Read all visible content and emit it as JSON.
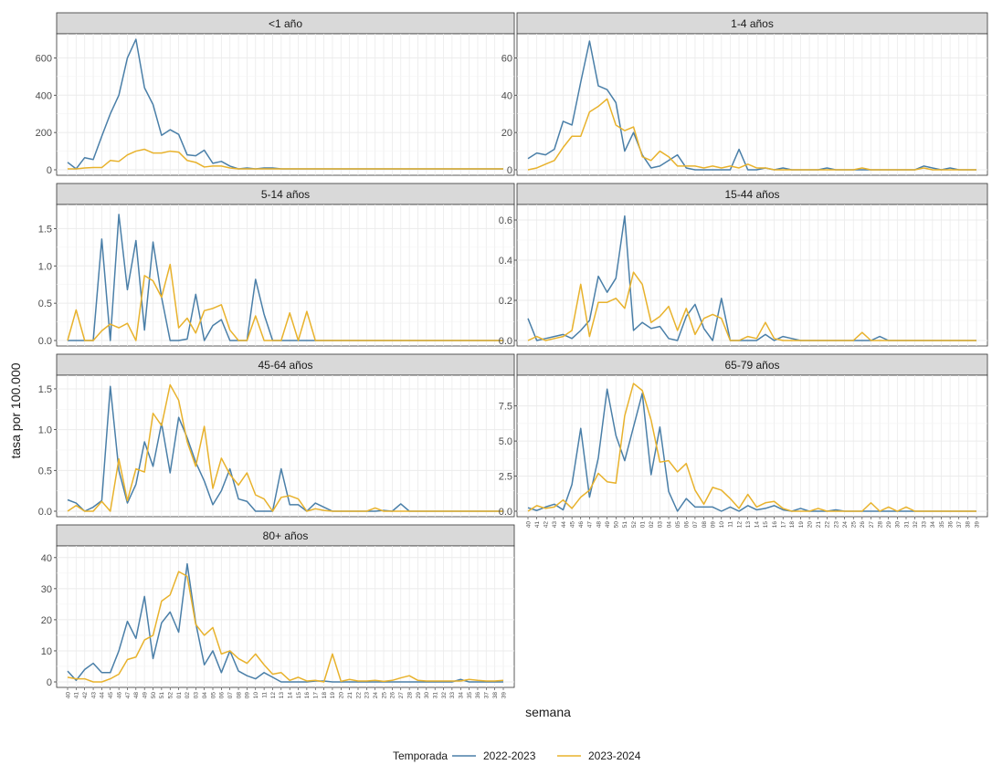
{
  "chart_data": {
    "type": "line",
    "xlabel": "semana",
    "ylabel": "tasa por 100.000",
    "x_weeks": [
      "40",
      "41",
      "42",
      "43",
      "44",
      "45",
      "46",
      "47",
      "48",
      "49",
      "50",
      "51",
      "52",
      "01",
      "02",
      "03",
      "04",
      "05",
      "06",
      "07",
      "08",
      "09",
      "10",
      "11",
      "12",
      "13",
      "14",
      "15",
      "16",
      "17",
      "18",
      "19",
      "20",
      "21",
      "22",
      "23",
      "24",
      "25",
      "26",
      "27",
      "28",
      "29",
      "30",
      "31",
      "32",
      "33",
      "34",
      "35",
      "36",
      "37",
      "38",
      "39"
    ],
    "legend": {
      "title": "Temporada",
      "position": "bottom",
      "series": [
        {
          "name": "2022-2023",
          "color": "#4a7fa8"
        },
        {
          "name": "2023-2024",
          "color": "#e8b22c"
        }
      ]
    },
    "panels": [
      {
        "title": "<1 año",
        "ylim": [
          0,
          700
        ],
        "yticks": [
          {
            "v": 0,
            "label": "0"
          },
          {
            "v": 200,
            "label": "200"
          },
          {
            "v": 400,
            "label": "400"
          },
          {
            "v": 600,
            "label": "600"
          }
        ],
        "s1": [
          40,
          5,
          65,
          55,
          180,
          300,
          400,
          600,
          700,
          440,
          350,
          185,
          215,
          190,
          80,
          75,
          105,
          35,
          45,
          20,
          5,
          10,
          5,
          10,
          10,
          5,
          5,
          5,
          5,
          5,
          5,
          5,
          5,
          5,
          5,
          5,
          5,
          5,
          5,
          5,
          5,
          5,
          5,
          5,
          5,
          5,
          5,
          5,
          5,
          5,
          5,
          5
        ],
        "s2": [
          5,
          5,
          10,
          12,
          12,
          50,
          45,
          80,
          100,
          110,
          90,
          90,
          100,
          95,
          50,
          40,
          15,
          20,
          20,
          10,
          5,
          5,
          5,
          5,
          5,
          5,
          5,
          5,
          5,
          5,
          5,
          5,
          5,
          5,
          5,
          5,
          5,
          5,
          5,
          5,
          5,
          5,
          5,
          5,
          5,
          5,
          5,
          5,
          5,
          5,
          5,
          5
        ]
      },
      {
        "title": "1-4 años",
        "ylim": [
          0,
          70
        ],
        "yticks": [
          {
            "v": 0,
            "label": "0"
          },
          {
            "v": 20,
            "label": "20"
          },
          {
            "v": 40,
            "label": "40"
          },
          {
            "v": 60,
            "label": "60"
          }
        ],
        "s1": [
          6,
          9,
          8,
          11,
          26,
          24,
          47,
          69,
          45,
          43,
          36,
          10,
          20,
          8,
          1,
          2,
          5,
          8,
          1,
          0,
          0,
          0,
          0,
          0,
          11,
          0,
          0,
          1,
          0,
          1,
          0,
          0,
          0,
          0,
          1,
          0,
          0,
          0,
          0,
          0,
          0,
          0,
          0,
          0,
          0,
          2,
          1,
          0,
          1,
          0,
          0,
          0
        ],
        "s2": [
          0,
          1,
          3,
          5,
          12,
          18,
          18,
          31,
          34,
          38,
          24,
          21,
          23,
          7,
          5,
          10,
          7,
          2,
          2,
          2,
          1,
          2,
          1,
          2,
          1,
          3,
          1,
          1,
          0,
          0,
          0,
          0,
          0,
          0,
          0,
          0,
          0,
          0,
          1,
          0,
          0,
          0,
          0,
          0,
          0,
          1,
          0,
          0,
          0,
          0,
          0,
          0
        ]
      },
      {
        "title": "5-14 años",
        "ylim": [
          0,
          1.75
        ],
        "yticks": [
          {
            "v": 0,
            "label": "0.0"
          },
          {
            "v": 0.5,
            "label": "0.5"
          },
          {
            "v": 1.0,
            "label": "1.0"
          },
          {
            "v": 1.5,
            "label": "1.5"
          }
        ],
        "s1": [
          0,
          0,
          0,
          0,
          1.36,
          0,
          1.69,
          0.68,
          1.34,
          0.14,
          1.32,
          0.58,
          0,
          0,
          0.02,
          0.62,
          0,
          0.2,
          0.28,
          0,
          0,
          0,
          0.82,
          0.35,
          0,
          0,
          0,
          0,
          0,
          0,
          0,
          0,
          0,
          0,
          0,
          0,
          0,
          0,
          0,
          0,
          0,
          0,
          0,
          0,
          0,
          0,
          0,
          0,
          0,
          0,
          0,
          0
        ],
        "s2": [
          0,
          0.41,
          0,
          0,
          0.13,
          0.22,
          0.17,
          0.23,
          0,
          0.87,
          0.8,
          0.58,
          1.02,
          0.17,
          0.3,
          0.1,
          0.4,
          0.43,
          0.48,
          0.14,
          0,
          0,
          0.33,
          0,
          0,
          0,
          0.37,
          0,
          0.39,
          0,
          0,
          0,
          0,
          0,
          0,
          0,
          0,
          0,
          0,
          0,
          0,
          0,
          0,
          0,
          0,
          0,
          0,
          0,
          0,
          0,
          0,
          0
        ]
      },
      {
        "title": "15-44 años",
        "ylim": [
          0,
          0.65
        ],
        "yticks": [
          {
            "v": 0,
            "label": "0.0"
          },
          {
            "v": 0.2,
            "label": "0.2"
          },
          {
            "v": 0.4,
            "label": "0.4"
          },
          {
            "v": 0.6,
            "label": "0.6"
          }
        ],
        "s1": [
          0.11,
          0,
          0.01,
          0.02,
          0.03,
          0.01,
          0.05,
          0.1,
          0.32,
          0.24,
          0.31,
          0.62,
          0.05,
          0.09,
          0.06,
          0.07,
          0.01,
          0,
          0.12,
          0.18,
          0.06,
          0,
          0.21,
          0,
          0,
          0,
          0,
          0.03,
          0,
          0.02,
          0.01,
          0,
          0,
          0,
          0,
          0,
          0,
          0,
          0,
          0,
          0.02,
          0,
          0,
          0,
          0,
          0,
          0,
          0,
          0,
          0,
          0,
          0
        ],
        "s2": [
          0,
          0.02,
          0,
          0.01,
          0.02,
          0.05,
          0.28,
          0.02,
          0.19,
          0.19,
          0.21,
          0.16,
          0.34,
          0.28,
          0.09,
          0.12,
          0.17,
          0.05,
          0.16,
          0.03,
          0.11,
          0.13,
          0.11,
          0,
          0,
          0.02,
          0.01,
          0.09,
          0.01,
          0,
          0,
          0,
          0,
          0,
          0,
          0,
          0,
          0,
          0.04,
          0,
          0,
          0,
          0,
          0,
          0,
          0,
          0,
          0,
          0,
          0,
          0,
          0
        ]
      },
      {
        "title": "45-64 años",
        "ylim": [
          0,
          1.6
        ],
        "yticks": [
          {
            "v": 0,
            "label": "0.0"
          },
          {
            "v": 0.5,
            "label": "0.5"
          },
          {
            "v": 1.0,
            "label": "1.0"
          },
          {
            "v": 1.5,
            "label": "1.5"
          }
        ],
        "s1": [
          0.14,
          0.1,
          0,
          0.05,
          0.13,
          1.53,
          0.5,
          0.1,
          0.33,
          0.85,
          0.55,
          1.08,
          0.47,
          1.15,
          0.9,
          0.6,
          0.37,
          0.08,
          0.25,
          0.52,
          0.15,
          0.12,
          0,
          0,
          0,
          0.52,
          0.08,
          0.08,
          0,
          0.1,
          0.05,
          0,
          0,
          0,
          0,
          0,
          0,
          0.01,
          0,
          0.09,
          0,
          0,
          0,
          0,
          0,
          0,
          0,
          0,
          0,
          0,
          0,
          0
        ],
        "s2": [
          0,
          0.07,
          0,
          0,
          0.12,
          0,
          0.64,
          0.13,
          0.52,
          0.48,
          1.2,
          1.05,
          1.55,
          1.36,
          0.85,
          0.55,
          1.04,
          0.28,
          0.65,
          0.45,
          0.32,
          0.47,
          0.2,
          0.15,
          0,
          0.17,
          0.19,
          0.15,
          0,
          0.03,
          0.01,
          0,
          0,
          0,
          0,
          0,
          0.04,
          0,
          0,
          0,
          0,
          0,
          0,
          0,
          0,
          0,
          0,
          0,
          0,
          0,
          0,
          0
        ]
      },
      {
        "title": "65-79 años",
        "ylim": [
          0,
          9.3
        ],
        "yticks": [
          {
            "v": 0,
            "label": "0.0"
          },
          {
            "v": 2.5,
            "label": "2.5"
          },
          {
            "v": 5,
            "label": "5.0"
          },
          {
            "v": 7.5,
            "label": "7.5"
          }
        ],
        "s1": [
          0.25,
          0.05,
          0.3,
          0.5,
          0.1,
          1.9,
          5.9,
          1,
          3.8,
          8.7,
          5.4,
          3.6,
          6,
          8.4,
          2.6,
          6,
          1.4,
          0,
          0.9,
          0.3,
          0.3,
          0.3,
          0,
          0.3,
          0,
          0.4,
          0.1,
          0.2,
          0.4,
          0.1,
          0,
          0.2,
          0,
          0,
          0,
          0.1,
          0,
          0,
          0,
          0,
          0,
          0,
          0,
          0,
          0,
          0,
          0,
          0,
          0,
          0,
          0,
          0
        ],
        "s2": [
          0,
          0.4,
          0.2,
          0.3,
          0.8,
          0.2,
          1,
          1.5,
          2.7,
          2.1,
          2,
          6.8,
          9.1,
          8.6,
          6.5,
          3.5,
          3.6,
          2.8,
          3.4,
          1.5,
          0.5,
          1.7,
          1.5,
          0.9,
          0.2,
          1.2,
          0.3,
          0.6,
          0.7,
          0.2,
          0,
          0,
          0,
          0.2,
          0,
          0,
          0,
          0,
          0,
          0.6,
          0,
          0.3,
          0,
          0.3,
          0,
          0,
          0,
          0,
          0,
          0,
          0,
          0
        ]
      },
      {
        "title": "80+ años",
        "ylim": [
          0,
          42
        ],
        "yticks": [
          {
            "v": 0,
            "label": "0"
          },
          {
            "v": 10,
            "label": "10"
          },
          {
            "v": 20,
            "label": "20"
          },
          {
            "v": 30,
            "label": "30"
          },
          {
            "v": 40,
            "label": "40"
          }
        ],
        "s1": [
          3.5,
          0.5,
          4,
          6,
          3,
          3,
          10,
          19.5,
          14,
          27.5,
          7.5,
          19,
          22.5,
          16,
          38,
          19,
          5.5,
          10,
          3,
          10,
          3.5,
          2,
          1,
          3,
          1.5,
          0,
          0,
          0,
          0,
          0.3,
          0.3,
          0,
          0,
          0,
          0,
          0,
          0,
          0,
          0,
          0,
          0,
          0,
          0,
          0,
          0,
          0,
          0.8,
          0,
          0,
          0,
          0,
          0
        ],
        "s2": [
          1.5,
          1,
          1,
          0,
          0,
          1,
          2.5,
          7.2,
          8,
          13.5,
          15,
          26,
          28,
          35.5,
          34,
          18.5,
          15,
          17.5,
          9,
          10,
          7.5,
          6,
          9,
          5.5,
          2.5,
          3,
          0.5,
          1.5,
          0.3,
          0.5,
          0,
          9,
          0.2,
          0.8,
          0.3,
          0.3,
          0.5,
          0.2,
          0.5,
          1.3,
          2,
          0.5,
          0.3,
          0.3,
          0.3,
          0.3,
          0.3,
          0.8,
          0.5,
          0.3,
          0.3,
          0.5
        ]
      }
    ]
  }
}
